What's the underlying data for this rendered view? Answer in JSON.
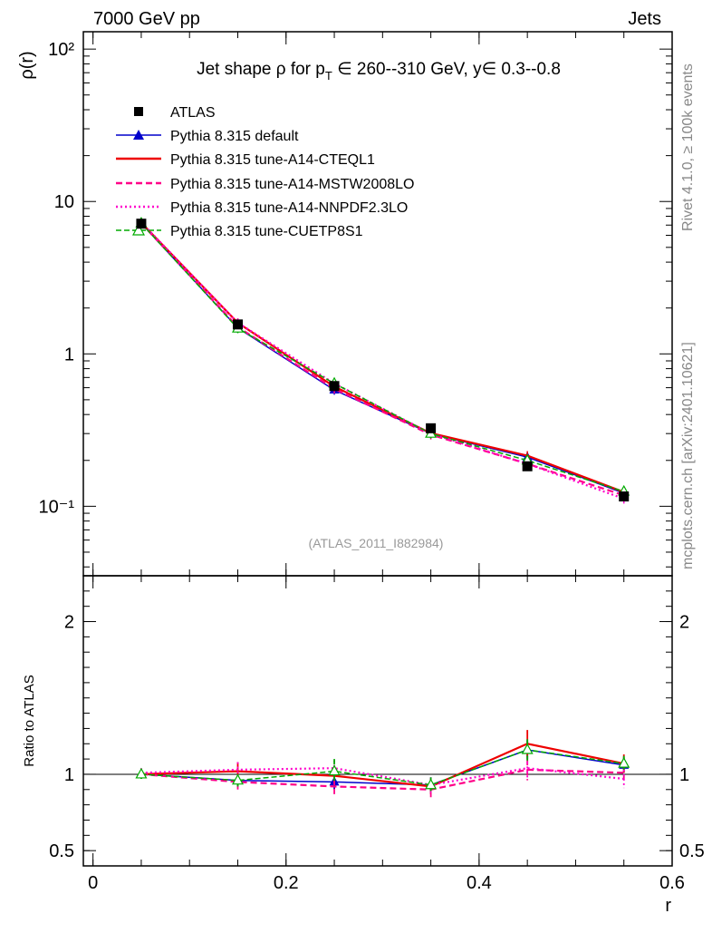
{
  "header": {
    "energy": "7000 GeV pp",
    "category": "Jets",
    "side_top": "Rivet 4.1.0, ≥ 100k events",
    "side_bottom": "mcplots.cern.ch [arXiv:2401.10621]",
    "reference": "(ATLAS_2011_I882984)"
  },
  "chart_data": {
    "type": "line",
    "title_parts": {
      "prefix": "Jet shape ρ for p",
      "sub": "T",
      "suffix": " ∈ 260--310 GeV, y∈ 0.3--0.8"
    },
    "xlabel": "r",
    "ylabel": "ρ(r)",
    "ratio_ylabel": "Ratio to ATLAS",
    "xlim": [
      -0.01,
      0.6
    ],
    "ylim": [
      0.035,
      130
    ],
    "ratio_ylim": [
      0.4,
      2.3
    ],
    "x_ticks": [
      {
        "value": 0,
        "label": "0"
      },
      {
        "value": 0.2,
        "label": "0.2"
      },
      {
        "value": 0.4,
        "label": "0.4"
      },
      {
        "value": 0.6,
        "label": "0.6"
      }
    ],
    "y_ticks": [
      {
        "value": 0.1,
        "label": "10⁻¹"
      },
      {
        "value": 1,
        "label": "1"
      },
      {
        "value": 10,
        "label": "10"
      },
      {
        "value": 100,
        "label": "10²"
      }
    ],
    "ratio_ticks": [
      {
        "value": 0.5,
        "label": "0.5"
      },
      {
        "value": 1,
        "label": "1"
      },
      {
        "value": 2,
        "label": "2"
      }
    ],
    "x": [
      0.05,
      0.15,
      0.25,
      0.35,
      0.45,
      0.55
    ],
    "data": {
      "name": "ATLAS",
      "values": [
        7.15,
        1.56,
        0.615,
        0.325,
        0.183,
        0.116
      ],
      "errors": [
        0.3,
        0.06,
        0.03,
        0.015,
        0.012,
        0.008
      ]
    },
    "series": [
      {
        "name": "Pythia 8.315 default",
        "color": "#0000cc",
        "dash": "none",
        "marker": "filled-triangle",
        "values": [
          7.2,
          1.48,
          0.58,
          0.3,
          0.21,
          0.122
        ],
        "ratio": [
          1.0,
          0.96,
          0.95,
          0.93,
          1.16,
          1.06
        ],
        "ratio_err": [
          0.03,
          0.04,
          0.05,
          0.05,
          0.06,
          0.05
        ]
      },
      {
        "name": "Pythia 8.315 tune-A14-CTEQL1",
        "color": "#ee0000",
        "dash": "none",
        "marker": "none",
        "values": [
          7.25,
          1.6,
          0.61,
          0.302,
          0.215,
          0.124
        ],
        "ratio": [
          1.0,
          1.02,
          0.99,
          0.92,
          1.2,
          1.07
        ],
        "ratio_err": [
          0.03,
          0.06,
          0.06,
          0.05,
          0.09,
          0.06
        ]
      },
      {
        "name": "Pythia 8.315 tune-A14-MSTW2008LO",
        "color": "#ff0088",
        "dash": "7,4",
        "marker": "none",
        "values": [
          7.2,
          1.5,
          0.59,
          0.295,
          0.19,
          0.118
        ],
        "ratio": [
          1.0,
          0.95,
          0.92,
          0.9,
          1.03,
          1.01
        ],
        "ratio_err": [
          0.03,
          0.05,
          0.05,
          0.05,
          0.07,
          0.05
        ]
      },
      {
        "name": "Pythia 8.315 tune-A14-NNPDF2.3LO",
        "color": "#ff00cc",
        "dash": "2,3",
        "marker": "none",
        "values": [
          7.3,
          1.6,
          0.64,
          0.3,
          0.19,
          0.112
        ],
        "ratio": [
          1.01,
          1.03,
          1.04,
          0.93,
          1.04,
          0.97
        ],
        "ratio_err": [
          0.03,
          0.05,
          0.05,
          0.05,
          0.07,
          0.06
        ]
      },
      {
        "name": "Pythia 8.315 tune-CUETP8S1",
        "color": "#00aa00",
        "dash": "6,3",
        "marker": "open-triangle",
        "values": [
          7.2,
          1.47,
          0.64,
          0.3,
          0.2,
          0.125
        ],
        "ratio": [
          1.0,
          0.96,
          1.02,
          0.93,
          1.16,
          1.07
        ],
        "ratio_err": [
          0.03,
          0.04,
          0.08,
          0.05,
          0.07,
          0.05
        ]
      }
    ]
  }
}
